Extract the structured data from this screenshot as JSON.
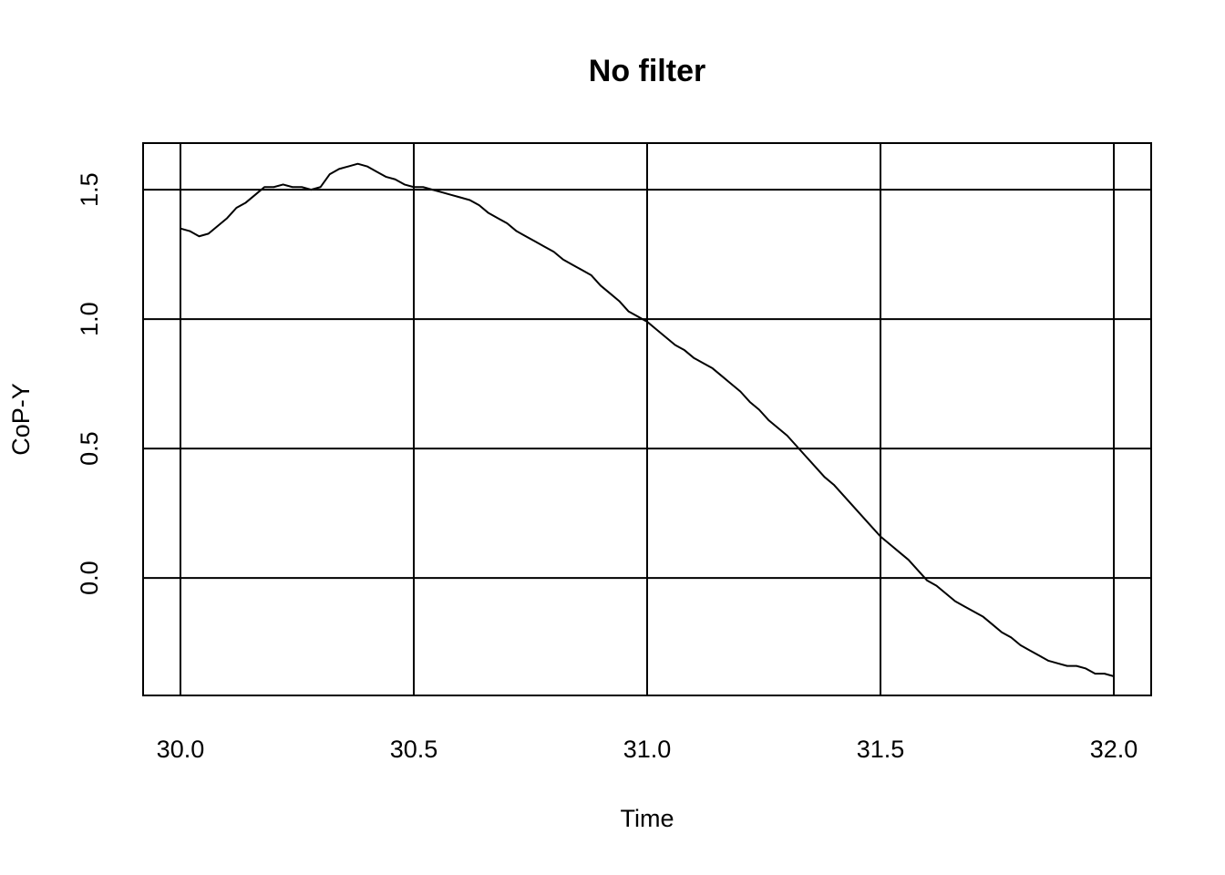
{
  "chart_data": {
    "type": "line",
    "title": "No filter",
    "x_label": "Time",
    "y_label": "CoP-Y",
    "x": [
      30.0,
      30.02,
      30.04,
      30.06,
      30.08,
      30.1,
      30.12,
      30.14,
      30.16,
      30.18,
      30.2,
      30.22,
      30.24,
      30.26,
      30.28,
      30.3,
      30.32,
      30.34,
      30.36,
      30.38,
      30.4,
      30.42,
      30.44,
      30.46,
      30.48,
      30.5,
      30.52,
      30.54,
      30.56,
      30.58,
      30.6,
      30.62,
      30.64,
      30.66,
      30.68,
      30.7,
      30.72,
      30.74,
      30.76,
      30.78,
      30.8,
      30.82,
      30.84,
      30.86,
      30.88,
      30.9,
      30.92,
      30.94,
      30.96,
      30.98,
      31.0,
      31.02,
      31.04,
      31.06,
      31.08,
      31.1,
      31.12,
      31.14,
      31.16,
      31.18,
      31.2,
      31.22,
      31.24,
      31.26,
      31.28,
      31.3,
      31.32,
      31.34,
      31.36,
      31.38,
      31.4,
      31.42,
      31.44,
      31.46,
      31.48,
      31.5,
      31.52,
      31.54,
      31.56,
      31.58,
      31.6,
      31.62,
      31.64,
      31.66,
      31.68,
      31.7,
      31.72,
      31.74,
      31.76,
      31.78,
      31.8,
      31.82,
      31.84,
      31.86,
      31.88,
      31.9,
      31.92,
      31.94,
      31.96,
      31.98,
      32.0
    ],
    "series": [
      {
        "color": "#000000",
        "values": [
          1.35,
          1.34,
          1.32,
          1.33,
          1.36,
          1.39,
          1.43,
          1.45,
          1.48,
          1.51,
          1.51,
          1.52,
          1.51,
          1.51,
          1.5,
          1.51,
          1.56,
          1.58,
          1.59,
          1.6,
          1.59,
          1.57,
          1.55,
          1.54,
          1.52,
          1.51,
          1.51,
          1.5,
          1.49,
          1.48,
          1.47,
          1.46,
          1.44,
          1.41,
          1.39,
          1.37,
          1.34,
          1.32,
          1.3,
          1.28,
          1.26,
          1.23,
          1.21,
          1.19,
          1.17,
          1.13,
          1.1,
          1.07,
          1.03,
          1.01,
          0.99,
          0.96,
          0.93,
          0.9,
          0.88,
          0.85,
          0.83,
          0.81,
          0.78,
          0.75,
          0.72,
          0.68,
          0.65,
          0.61,
          0.58,
          0.55,
          0.51,
          0.47,
          0.43,
          0.39,
          0.36,
          0.32,
          0.28,
          0.24,
          0.2,
          0.16,
          0.13,
          0.1,
          0.07,
          0.03,
          -0.01,
          -0.03,
          -0.06,
          -0.09,
          -0.11,
          -0.13,
          -0.15,
          -0.18,
          -0.21,
          -0.23,
          -0.26,
          -0.28,
          -0.3,
          -0.32,
          -0.33,
          -0.34,
          -0.34,
          -0.35,
          -0.37,
          -0.37,
          -0.38
        ]
      }
    ],
    "xlim": [
      29.92,
      32.08
    ],
    "xticks": [
      {
        "value": 30,
        "label": "30.0"
      },
      30.5,
      {
        "value": 31,
        "label": "31.0"
      },
      31.5,
      {
        "value": 32,
        "label": "32.0"
      }
    ],
    "ylim": [
      -0.454,
      1.68
    ],
    "yticks": [
      {
        "value": 0,
        "label": "0.0"
      },
      0.5,
      {
        "value": 1,
        "label": "1.0"
      },
      1.5
    ],
    "grid": true
  }
}
